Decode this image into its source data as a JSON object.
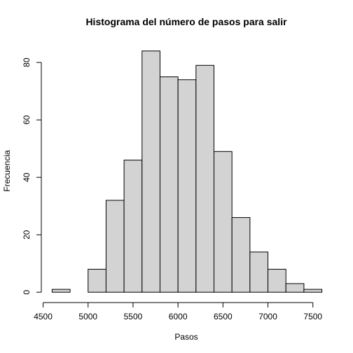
{
  "chart_data": {
    "type": "bar",
    "title": "Histograma del número de pasos para salir",
    "xlabel": "Pasos",
    "ylabel": "Frecuencia",
    "bin_edges": [
      4600,
      4800,
      5000,
      5200,
      5400,
      5600,
      5800,
      6000,
      6200,
      6400,
      6600,
      6800,
      7000,
      7200,
      7400,
      7600
    ],
    "values": [
      1,
      0,
      8,
      32,
      46,
      84,
      75,
      74,
      79,
      49,
      26,
      14,
      8,
      3,
      1
    ],
    "xlim": [
      4600,
      7600
    ],
    "ylim": [
      0,
      84
    ],
    "x_ticks": [
      4500,
      5000,
      5500,
      6000,
      6500,
      7000,
      7500
    ],
    "y_ticks": [
      0,
      20,
      40,
      60,
      80
    ],
    "bar_color": "#d3d3d3",
    "grid": false,
    "legend": "none"
  }
}
